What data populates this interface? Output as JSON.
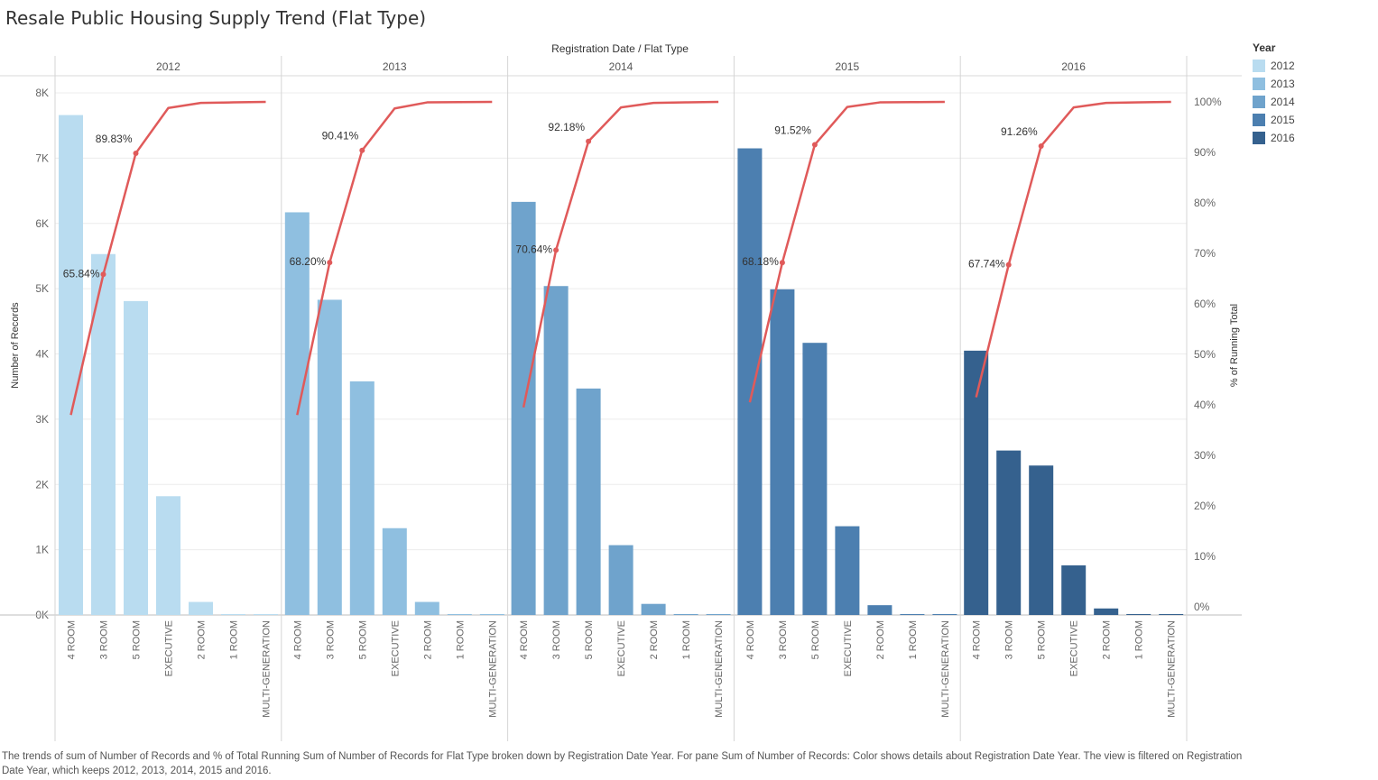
{
  "title": "Resale Public Housing Supply Trend (Flat Type)",
  "caption": "The trends of sum of Number of Records and % of Total Running Sum of Number of Records for Flat Type broken down by Registration Date Year.  For pane Sum of Number of Records:  Color shows details about Registration Date Year. The view is filtered on Registration Date Year, which keeps 2012, 2013, 2014, 2015 and 2016.",
  "legend": {
    "title": "Year",
    "items": [
      {
        "label": "2012",
        "color": "#b9dcf0"
      },
      {
        "label": "2013",
        "color": "#8fbfe0"
      },
      {
        "label": "2014",
        "color": "#6fa3cc"
      },
      {
        "label": "2015",
        "color": "#4c7fb0"
      },
      {
        "label": "2016",
        "color": "#35618e"
      }
    ]
  },
  "line_color": "#e05a5a",
  "chart_data": {
    "type": "bar",
    "title": "Resale Public Housing Supply Trend (Flat Type)",
    "header": "Registration Date  /  Flat Type",
    "ylabel": "Number of Records",
    "y2label": "% of Running Total",
    "ylim": [
      0,
      8000
    ],
    "y_ticks": [
      "0K",
      "1K",
      "2K",
      "3K",
      "4K",
      "5K",
      "6K",
      "7K",
      "8K"
    ],
    "y2lim": [
      0,
      100
    ],
    "y2_ticks": [
      "0%",
      "10%",
      "20%",
      "30%",
      "40%",
      "50%",
      "60%",
      "70%",
      "80%",
      "90%",
      "100%"
    ],
    "grid": true,
    "legend_position": "right",
    "categories": [
      "4 ROOM",
      "3 ROOM",
      "5 ROOM",
      "EXECUTIVE",
      "2 ROOM",
      "1 ROOM",
      "MULTI-GENERATION"
    ],
    "panels": [
      {
        "year": "2012",
        "values": [
          7660,
          5530,
          4810,
          1820,
          200,
          10,
          10
        ],
        "running_pct": [
          38,
          65.84,
          89.83,
          98.8,
          99.8,
          99.9,
          100
        ],
        "labels": [
          null,
          "65.84%",
          "89.83%",
          null,
          null,
          null,
          null
        ]
      },
      {
        "year": "2013",
        "values": [
          6170,
          4830,
          3580,
          1330,
          200,
          5,
          8
        ],
        "running_pct": [
          38,
          68.2,
          90.41,
          98.7,
          99.9,
          99.95,
          100
        ],
        "labels": [
          null,
          "68.20%",
          "90.41%",
          null,
          null,
          null,
          null
        ]
      },
      {
        "year": "2014",
        "values": [
          6330,
          5040,
          3470,
          1070,
          170,
          10,
          5
        ],
        "running_pct": [
          39.5,
          70.64,
          92.18,
          98.9,
          99.8,
          99.9,
          100
        ],
        "labels": [
          null,
          "70.64%",
          "92.18%",
          null,
          null,
          null,
          null
        ]
      },
      {
        "year": "2015",
        "values": [
          7150,
          4990,
          4170,
          1360,
          150,
          10,
          5
        ],
        "running_pct": [
          40.5,
          68.18,
          91.52,
          99,
          99.9,
          99.95,
          100
        ],
        "labels": [
          null,
          "68.18%",
          "91.52%",
          null,
          null,
          null,
          null
        ]
      },
      {
        "year": "2016",
        "values": [
          4050,
          2520,
          2290,
          760,
          100,
          5,
          5
        ],
        "running_pct": [
          41.5,
          67.74,
          91.26,
          98.9,
          99.8,
          99.9,
          100
        ],
        "labels": [
          null,
          "67.74%",
          "91.26%",
          null,
          null,
          null,
          null
        ]
      }
    ]
  }
}
